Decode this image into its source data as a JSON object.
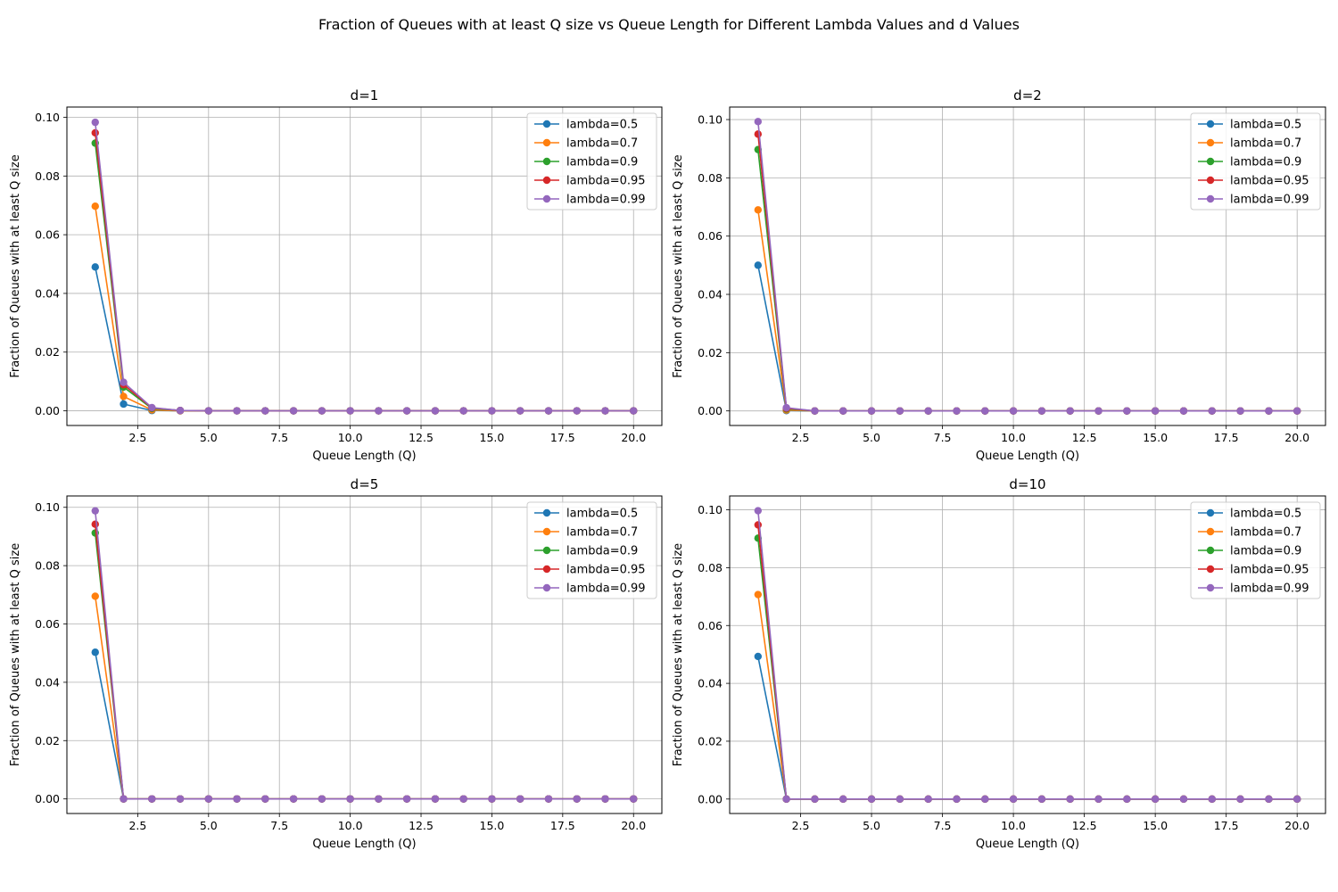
{
  "figure": {
    "title": "Fraction of Queues with at least Q size vs Queue Length for Different Lambda Values and d Values"
  },
  "chart_data": [
    {
      "type": "line",
      "title": "d=1",
      "xlabel": "Queue Length (Q)",
      "ylabel": "Fraction of Queues with at least Q size",
      "xlim": [
        0,
        21
      ],
      "ylim": [
        -0.005,
        0.1035
      ],
      "xticks": [
        "2.5",
        "5.0",
        "7.5",
        "10.0",
        "12.5",
        "15.0",
        "17.5",
        "20.0"
      ],
      "yticks": [
        "0.00",
        "0.02",
        "0.04",
        "0.06",
        "0.08",
        "0.10"
      ],
      "grid": true,
      "legend": "top-right",
      "x": [
        1,
        2,
        3,
        4,
        5,
        6,
        7,
        8,
        9,
        10,
        11,
        12,
        13,
        14,
        15,
        16,
        17,
        18,
        19,
        20
      ],
      "series": [
        {
          "name": "lambda=0.5",
          "color": "#1f77b4",
          "values": [
            0.049,
            0.0023,
            0.0001,
            0,
            0,
            0,
            0,
            0,
            0,
            0,
            0,
            0,
            0,
            0,
            0,
            0,
            0,
            0,
            0,
            0
          ]
        },
        {
          "name": "lambda=0.7",
          "color": "#ff7f0e",
          "values": [
            0.0697,
            0.0049,
            0.0003,
            0,
            0,
            0,
            0,
            0,
            0,
            0,
            0,
            0,
            0,
            0,
            0,
            0,
            0,
            0,
            0,
            0
          ]
        },
        {
          "name": "lambda=0.9",
          "color": "#2ca02c",
          "values": [
            0.0912,
            0.0081,
            0.0008,
            0.0001,
            0,
            0,
            0,
            0,
            0,
            0,
            0,
            0,
            0,
            0,
            0,
            0,
            0,
            0,
            0,
            0
          ]
        },
        {
          "name": "lambda=0.95",
          "color": "#d62728",
          "values": [
            0.0947,
            0.0089,
            0.001,
            0.0001,
            0,
            0,
            0,
            0,
            0,
            0,
            0,
            0,
            0,
            0,
            0,
            0,
            0,
            0,
            0,
            0
          ]
        },
        {
          "name": "lambda=0.99",
          "color": "#9467bd",
          "values": [
            0.0983,
            0.0097,
            0.0011,
            0.0001,
            0,
            0,
            0,
            0,
            0,
            0,
            0,
            0,
            0,
            0,
            0,
            0,
            0,
            0,
            0,
            0
          ]
        }
      ]
    },
    {
      "type": "line",
      "title": "d=2",
      "xlabel": "Queue Length (Q)",
      "ylabel": "Fraction of Queues with at least Q size",
      "xlim": [
        0,
        21
      ],
      "ylim": [
        -0.005,
        0.1043
      ],
      "xticks": [
        "2.5",
        "5.0",
        "7.5",
        "10.0",
        "12.5",
        "15.0",
        "17.5",
        "20.0"
      ],
      "yticks": [
        "0.00",
        "0.02",
        "0.04",
        "0.06",
        "0.08",
        "0.10"
      ],
      "grid": true,
      "legend": "top-right",
      "x": [
        1,
        2,
        3,
        4,
        5,
        6,
        7,
        8,
        9,
        10,
        11,
        12,
        13,
        14,
        15,
        16,
        17,
        18,
        19,
        20
      ],
      "series": [
        {
          "name": "lambda=0.5",
          "color": "#1f77b4",
          "values": [
            0.05,
            0.0001,
            0,
            0,
            0,
            0,
            0,
            0,
            0,
            0,
            0,
            0,
            0,
            0,
            0,
            0,
            0,
            0,
            0,
            0
          ]
        },
        {
          "name": "lambda=0.7",
          "color": "#ff7f0e",
          "values": [
            0.069,
            0.0003,
            0,
            0,
            0,
            0,
            0,
            0,
            0,
            0,
            0,
            0,
            0,
            0,
            0,
            0,
            0,
            0,
            0,
            0
          ]
        },
        {
          "name": "lambda=0.9",
          "color": "#2ca02c",
          "values": [
            0.0897,
            0.0007,
            0,
            0,
            0,
            0,
            0,
            0,
            0,
            0,
            0,
            0,
            0,
            0,
            0,
            0,
            0,
            0,
            0,
            0
          ]
        },
        {
          "name": "lambda=0.95",
          "color": "#d62728",
          "values": [
            0.095,
            0.0009,
            0,
            0,
            0,
            0,
            0,
            0,
            0,
            0,
            0,
            0,
            0,
            0,
            0,
            0,
            0,
            0,
            0,
            0
          ]
        },
        {
          "name": "lambda=0.99",
          "color": "#9467bd",
          "values": [
            0.0993,
            0.0011,
            0,
            0,
            0,
            0,
            0,
            0,
            0,
            0,
            0,
            0,
            0,
            0,
            0,
            0,
            0,
            0,
            0,
            0
          ]
        }
      ]
    },
    {
      "type": "line",
      "title": "d=5",
      "xlabel": "Queue Length (Q)",
      "ylabel": "Fraction of Queues with at least Q size",
      "xlim": [
        0,
        21
      ],
      "ylim": [
        -0.005,
        0.1039
      ],
      "xticks": [
        "2.5",
        "5.0",
        "7.5",
        "10.0",
        "12.5",
        "15.0",
        "17.5",
        "20.0"
      ],
      "yticks": [
        "0.00",
        "0.02",
        "0.04",
        "0.06",
        "0.08",
        "0.10"
      ],
      "grid": true,
      "legend": "top-right",
      "x": [
        1,
        2,
        3,
        4,
        5,
        6,
        7,
        8,
        9,
        10,
        11,
        12,
        13,
        14,
        15,
        16,
        17,
        18,
        19,
        20
      ],
      "series": [
        {
          "name": "lambda=0.5",
          "color": "#1f77b4",
          "values": [
            0.0503,
            0,
            0,
            0,
            0,
            0,
            0,
            0,
            0,
            0,
            0,
            0,
            0,
            0,
            0,
            0,
            0,
            0,
            0,
            0
          ]
        },
        {
          "name": "lambda=0.7",
          "color": "#ff7f0e",
          "values": [
            0.0695,
            0,
            0,
            0,
            0,
            0,
            0,
            0,
            0,
            0,
            0,
            0,
            0,
            0,
            0,
            0,
            0,
            0,
            0,
            0
          ]
        },
        {
          "name": "lambda=0.9",
          "color": "#2ca02c",
          "values": [
            0.0912,
            0,
            0,
            0,
            0,
            0,
            0,
            0,
            0,
            0,
            0,
            0,
            0,
            0,
            0,
            0,
            0,
            0,
            0,
            0
          ]
        },
        {
          "name": "lambda=0.95",
          "color": "#d62728",
          "values": [
            0.0942,
            0,
            0,
            0,
            0,
            0,
            0,
            0,
            0,
            0,
            0,
            0,
            0,
            0,
            0,
            0,
            0,
            0,
            0,
            0
          ]
        },
        {
          "name": "lambda=0.99",
          "color": "#9467bd",
          "values": [
            0.0988,
            0,
            0,
            0,
            0,
            0,
            0,
            0,
            0,
            0,
            0,
            0,
            0,
            0,
            0,
            0,
            0,
            0,
            0,
            0
          ]
        }
      ]
    },
    {
      "type": "line",
      "title": "d=10",
      "xlabel": "Queue Length (Q)",
      "ylabel": "Fraction of Queues with at least Q size",
      "xlim": [
        0,
        21
      ],
      "ylim": [
        -0.005,
        0.1048
      ],
      "xticks": [
        "2.5",
        "5.0",
        "7.5",
        "10.0",
        "12.5",
        "15.0",
        "17.5",
        "20.0"
      ],
      "yticks": [
        "0.00",
        "0.02",
        "0.04",
        "0.06",
        "0.08",
        "0.10"
      ],
      "grid": true,
      "legend": "top-right",
      "x": [
        1,
        2,
        3,
        4,
        5,
        6,
        7,
        8,
        9,
        10,
        11,
        12,
        13,
        14,
        15,
        16,
        17,
        18,
        19,
        20
      ],
      "series": [
        {
          "name": "lambda=0.5",
          "color": "#1f77b4",
          "values": [
            0.0493,
            0,
            0,
            0,
            0,
            0,
            0,
            0,
            0,
            0,
            0,
            0,
            0,
            0,
            0,
            0,
            0,
            0,
            0,
            0
          ]
        },
        {
          "name": "lambda=0.7",
          "color": "#ff7f0e",
          "values": [
            0.0707,
            0,
            0,
            0,
            0,
            0,
            0,
            0,
            0,
            0,
            0,
            0,
            0,
            0,
            0,
            0,
            0,
            0,
            0,
            0
          ]
        },
        {
          "name": "lambda=0.9",
          "color": "#2ca02c",
          "values": [
            0.0902,
            0,
            0,
            0,
            0,
            0,
            0,
            0,
            0,
            0,
            0,
            0,
            0,
            0,
            0,
            0,
            0,
            0,
            0,
            0
          ]
        },
        {
          "name": "lambda=0.95",
          "color": "#d62728",
          "values": [
            0.0948,
            0,
            0,
            0,
            0,
            0,
            0,
            0,
            0,
            0,
            0,
            0,
            0,
            0,
            0,
            0,
            0,
            0,
            0,
            0
          ]
        },
        {
          "name": "lambda=0.99",
          "color": "#9467bd",
          "values": [
            0.0997,
            0,
            0,
            0,
            0,
            0,
            0,
            0,
            0,
            0,
            0,
            0,
            0,
            0,
            0,
            0,
            0,
            0,
            0,
            0
          ]
        }
      ]
    }
  ]
}
